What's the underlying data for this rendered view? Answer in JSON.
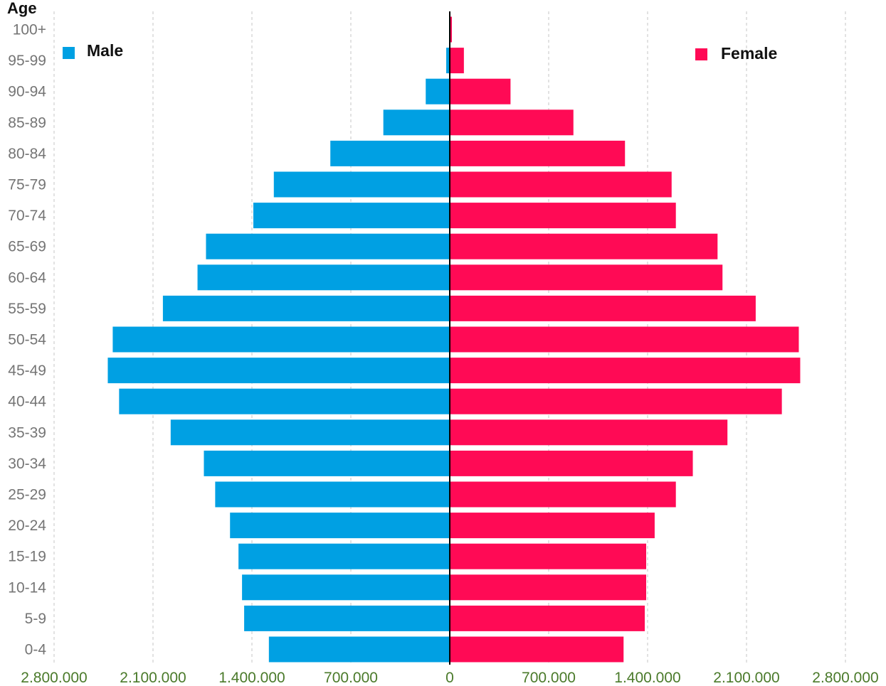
{
  "chart_data": {
    "type": "bar",
    "orientation": "horizontal",
    "subtype": "population-pyramid",
    "title": "",
    "ylabel": "Age",
    "xlabel": "",
    "categories": [
      "100+",
      "95-99",
      "90-94",
      "85-89",
      "80-84",
      "75-79",
      "70-74",
      "65-69",
      "60-64",
      "55-59",
      "50-54",
      "45-49",
      "40-44",
      "35-39",
      "30-34",
      "25-29",
      "20-24",
      "15-19",
      "10-14",
      "5-9",
      "0-4"
    ],
    "series": [
      {
        "name": "Male",
        "color": "#00a0e3",
        "side": "left",
        "values": [
          5000,
          25000,
          170000,
          470000,
          845000,
          1245000,
          1390000,
          1725000,
          1785000,
          2030000,
          2385000,
          2420000,
          2340000,
          1975000,
          1740000,
          1660000,
          1555000,
          1495000,
          1470000,
          1455000,
          1280000
        ]
      },
      {
        "name": "Female",
        "color": "#ff0a55",
        "side": "right",
        "values": [
          15000,
          100000,
          430000,
          875000,
          1240000,
          1570000,
          1600000,
          1895000,
          1930000,
          2165000,
          2470000,
          2480000,
          2350000,
          1965000,
          1720000,
          1600000,
          1450000,
          1390000,
          1390000,
          1380000,
          1230000
        ]
      }
    ],
    "xlim": [
      -2800000,
      2800000
    ],
    "xticks": [
      -2800000,
      -2100000,
      -1400000,
      -700000,
      0,
      700000,
      1400000,
      2100000,
      2800000
    ],
    "xtick_labels": [
      "2.800.000",
      "2.100.000",
      "1.400.000",
      "700.000",
      "0",
      "700.000",
      "1.400.000",
      "2.100.000",
      "2.800.000"
    ],
    "grid": "vertical-dashed",
    "legend": [
      {
        "label": "Male",
        "position": "top-left"
      },
      {
        "label": "Female",
        "position": "top-right"
      }
    ]
  }
}
